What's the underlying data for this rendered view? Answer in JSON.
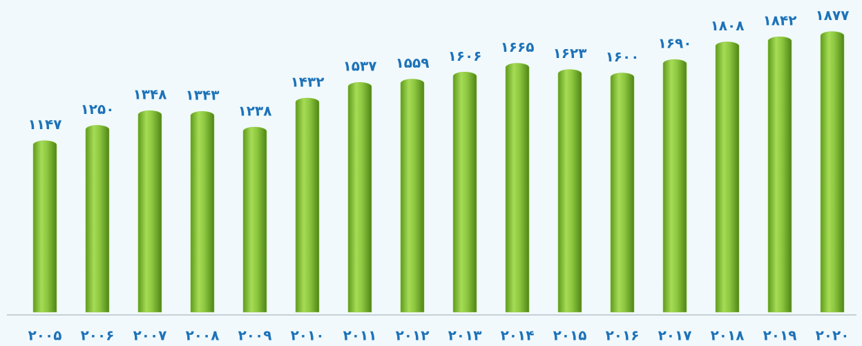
{
  "chart_data": {
    "type": "bar",
    "categories": [
      "۲۰۰۵",
      "۲۰۰۶",
      "۲۰۰۷",
      "۲۰۰۸",
      "۲۰۰۹",
      "۲۰۱۰",
      "۲۰۱۱",
      "۲۰۱۲",
      "۲۰۱۳",
      "۲۰۱۴",
      "۲۰۱۵",
      "۲۰۱۶",
      "۲۰۱۷",
      "۲۰۱۸",
      "۲۰۱۹",
      "۲۰۲۰"
    ],
    "values": [
      1147,
      1250,
      1348,
      1343,
      1238,
      1432,
      1537,
      1559,
      1606,
      1665,
      1623,
      1600,
      1690,
      1808,
      1842,
      1877
    ],
    "value_labels": [
      "۱۱۴۷",
      "۱۲۵۰",
      "۱۳۴۸",
      "۱۳۴۳",
      "۱۲۳۸",
      "۱۴۳۲",
      "۱۵۳۷",
      "۱۵۵۹",
      "۱۶۰۶",
      "۱۶۶۵",
      "۱۶۲۳",
      "۱۶۰۰",
      "۱۶۹۰",
      "۱۸۰۸",
      "۱۸۴۲",
      "۱۸۷۷"
    ],
    "color": "#8cc63f",
    "ylim": [
      0,
      2000
    ]
  }
}
